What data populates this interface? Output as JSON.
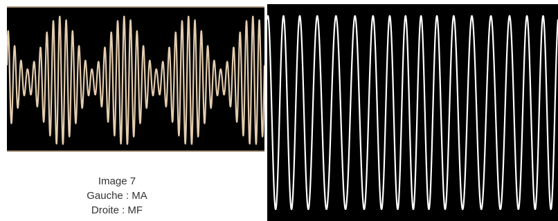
{
  "caption": {
    "title": "Image 7",
    "left_line": "Gauche : MA",
    "right_line": "Droite :  MF"
  },
  "colors": {
    "screen_background": "#000000",
    "am_trace": "#e3ccae",
    "am_frame": "#b29f88",
    "fm_trace": "#ffffff",
    "page_background": "#ffffff"
  },
  "scopes": [
    {
      "id": "am",
      "modulation": "MA",
      "waveform": "amplitude-modulated sine",
      "envelope_cycles_visible": 4,
      "carrier_cycles_per_envelope": 10
    },
    {
      "id": "fm",
      "modulation": "MF",
      "waveform": "frequency-modulated sine",
      "carrier_cycles_visible": 17
    }
  ]
}
